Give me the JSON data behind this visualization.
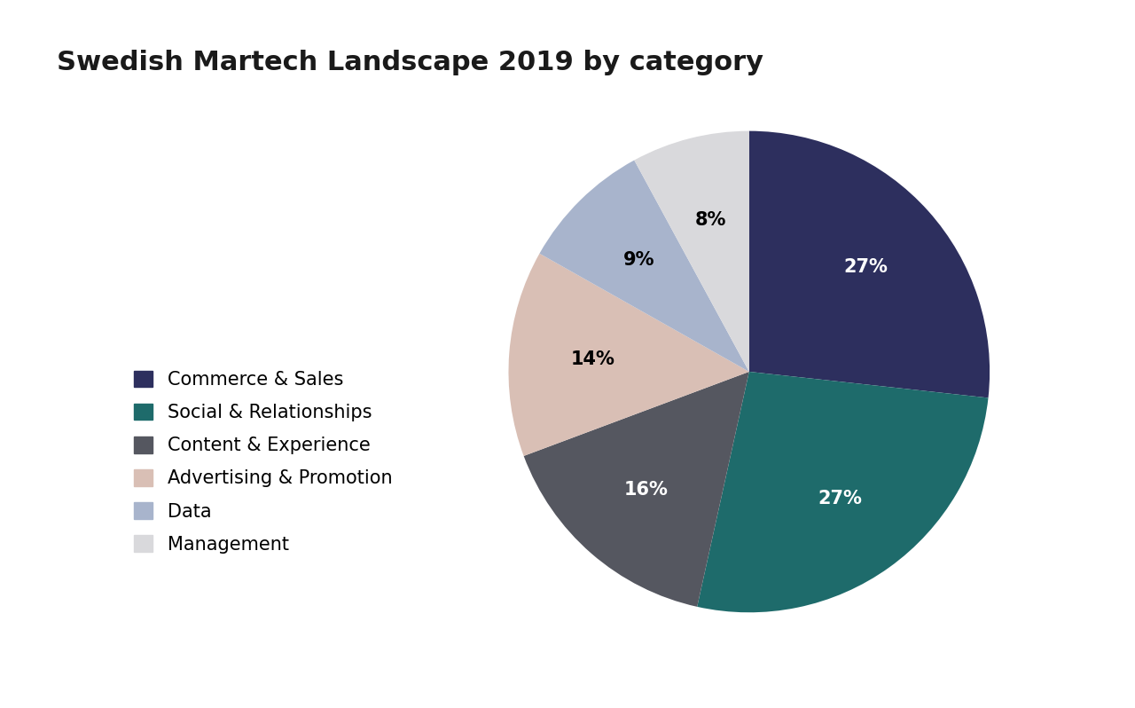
{
  "title": "Swedish Martech Landscape 2019 by category",
  "categories": [
    "Commerce & Sales",
    "Social & Relationships",
    "Content & Experience",
    "Advertising & Promotion",
    "Data",
    "Management"
  ],
  "values": [
    27,
    27,
    16,
    14,
    9,
    8
  ],
  "colors": [
    "#2d2f5e",
    "#1e6b6b",
    "#555760",
    "#d9bfb5",
    "#a8b4cc",
    "#d9d9dc"
  ],
  "text_colors": [
    "white",
    "white",
    "white",
    "black",
    "black",
    "black"
  ],
  "label_fontsize": 15,
  "title_fontsize": 22,
  "legend_fontsize": 15,
  "background_color": "#ffffff",
  "startangle": 90
}
